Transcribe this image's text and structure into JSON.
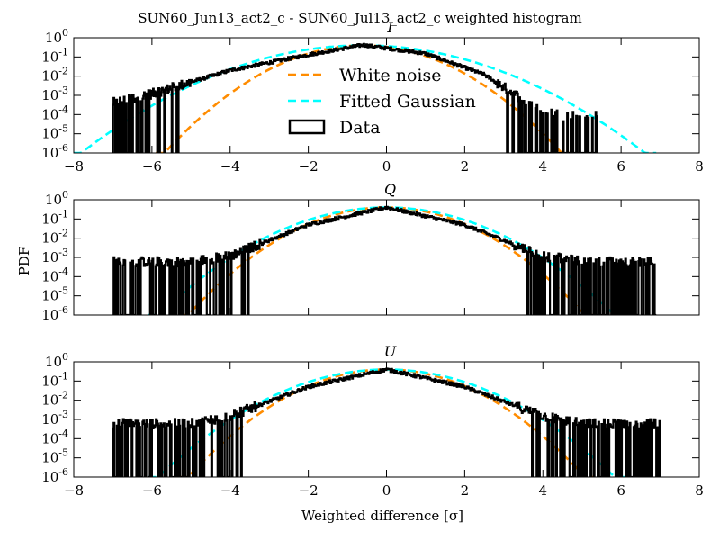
{
  "figure": {
    "title": "SUN60_Jun13_act2_c - SUN60_Jul13_act2_c weighted histogram",
    "shared_xlabel": "Weighted difference [σ]",
    "shared_ylabel": "PDF"
  },
  "legend": {
    "placement": "upper-center of first panel",
    "entries": [
      {
        "label": "White noise",
        "style": "dashed",
        "color": "#ff8c00"
      },
      {
        "label": "Fitted Gaussian",
        "style": "dashed",
        "color": "#00ffff"
      },
      {
        "label": "Data",
        "style": "box",
        "color": "#000000"
      }
    ]
  },
  "chart_data": [
    {
      "type": "line",
      "panel_title": "I",
      "xlim": [
        -8,
        8
      ],
      "ylim": [
        1e-06,
        1
      ],
      "yscale": "log",
      "x_ticks": [
        -8,
        -6,
        -4,
        -2,
        0,
        2,
        4,
        6,
        8
      ],
      "x_tick_labels": [
        "−8",
        "−6",
        "−4",
        "−2",
        "0",
        "2",
        "4",
        "6",
        "8"
      ],
      "y_ticks": [
        {
          "base": "10",
          "exp": "-6"
        },
        {
          "base": "10",
          "exp": "-5"
        },
        {
          "base": "10",
          "exp": "-4"
        },
        {
          "base": "10",
          "exp": "-3"
        },
        {
          "base": "10",
          "exp": "-2"
        },
        {
          "base": "10",
          "exp": "-1"
        },
        {
          "base": "10",
          "exp": "0"
        }
      ],
      "series": [
        {
          "name": "White noise",
          "kind": "gaussian",
          "mean": -0.6,
          "sigma": 1.0,
          "amp": 0.4
        },
        {
          "name": "Fitted Gaussian",
          "kind": "gaussian",
          "mean": -0.6,
          "sigma": 1.42,
          "amp": 0.4
        },
        {
          "name": "Data",
          "kind": "histogram",
          "x_range": [
            -7.0,
            5.4
          ],
          "sample_points": [
            [
              -7.0,
              0.0004
            ],
            [
              -6.0,
              0.0012
            ],
            [
              -4.0,
              0.02
            ],
            [
              -2.0,
              0.13
            ],
            [
              -0.6,
              0.42
            ],
            [
              1.0,
              0.15
            ],
            [
              2.5,
              0.012
            ],
            [
              3.5,
              0.0006
            ],
            [
              4.5,
              8e-05
            ],
            [
              5.4,
              0.0001
            ]
          ]
        }
      ]
    },
    {
      "type": "line",
      "panel_title": "Q",
      "xlim": [
        -8,
        8
      ],
      "ylim": [
        1e-06,
        1
      ],
      "yscale": "log",
      "x_ticks": [
        -8,
        -6,
        -4,
        -2,
        0,
        2,
        4,
        6,
        8
      ],
      "x_tick_labels": [],
      "y_ticks": [
        {
          "base": "10",
          "exp": "-6"
        },
        {
          "base": "10",
          "exp": "-5"
        },
        {
          "base": "10",
          "exp": "-4"
        },
        {
          "base": "10",
          "exp": "-3"
        },
        {
          "base": "10",
          "exp": "-2"
        },
        {
          "base": "10",
          "exp": "-1"
        },
        {
          "base": "10",
          "exp": "0"
        }
      ],
      "series": [
        {
          "name": "White noise",
          "kind": "gaussian",
          "mean": 0.0,
          "sigma": 1.0,
          "amp": 0.4
        },
        {
          "name": "Fitted Gaussian",
          "kind": "gaussian",
          "mean": 0.0,
          "sigma": 1.15,
          "amp": 0.4
        },
        {
          "name": "Data",
          "kind": "histogram",
          "x_range": [
            -7.0,
            6.9
          ],
          "sample_points": [
            [
              -7.0,
              0.0006
            ],
            [
              -5.0,
              0.0006
            ],
            [
              -4.0,
              0.0012
            ],
            [
              -2.0,
              0.05
            ],
            [
              0.0,
              0.4
            ],
            [
              2.0,
              0.05
            ],
            [
              4.0,
              0.0012
            ],
            [
              5.0,
              0.0006
            ],
            [
              6.9,
              0.0006
            ]
          ]
        }
      ]
    },
    {
      "type": "line",
      "panel_title": "U",
      "xlim": [
        -8,
        8
      ],
      "ylim": [
        1e-06,
        1
      ],
      "yscale": "log",
      "x_ticks": [
        -8,
        -6,
        -4,
        -2,
        0,
        2,
        4,
        6,
        8
      ],
      "x_tick_labels": [
        "−8",
        "−6",
        "−4",
        "−2",
        "0",
        "2",
        "4",
        "6",
        "8"
      ],
      "y_ticks": [
        {
          "base": "10",
          "exp": "-6"
        },
        {
          "base": "10",
          "exp": "-5"
        },
        {
          "base": "10",
          "exp": "-4"
        },
        {
          "base": "10",
          "exp": "-3"
        },
        {
          "base": "10",
          "exp": "-2"
        },
        {
          "base": "10",
          "exp": "-1"
        },
        {
          "base": "10",
          "exp": "0"
        }
      ],
      "series": [
        {
          "name": "White noise",
          "kind": "gaussian",
          "mean": 0.0,
          "sigma": 1.0,
          "amp": 0.4
        },
        {
          "name": "Fitted Gaussian",
          "kind": "gaussian",
          "mean": 0.0,
          "sigma": 1.15,
          "amp": 0.4
        },
        {
          "name": "Data",
          "kind": "histogram",
          "x_range": [
            -7.0,
            7.0
          ],
          "sample_points": [
            [
              -7.0,
              0.0006
            ],
            [
              -5.0,
              0.0006
            ],
            [
              -4.0,
              0.0015
            ],
            [
              -2.0,
              0.05
            ],
            [
              0.0,
              0.4
            ],
            [
              2.0,
              0.05
            ],
            [
              4.0,
              0.0015
            ],
            [
              5.0,
              0.0006
            ],
            [
              7.0,
              0.0006
            ]
          ]
        }
      ]
    }
  ]
}
